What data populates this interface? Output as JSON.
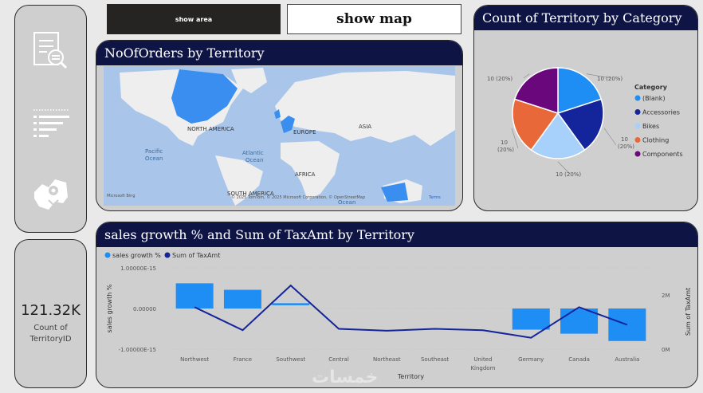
{
  "buttons": {
    "show_area": "show area",
    "show_map": "show map"
  },
  "navbar": {
    "icons": [
      "report-search-icon",
      "bar-list-icon",
      "map-pin-icon"
    ]
  },
  "kpi": {
    "value": "121.32K",
    "label_line1": "Count of",
    "label_line2": "TerritoryID"
  },
  "map": {
    "title": "NoOfOrders by Territory",
    "labels": {
      "north_america": "NORTH AMERICA",
      "europe": "EUROPE",
      "asia": "ASIA",
      "africa": "AFRICA",
      "south_america": "SOUTH AMERICA",
      "pacific": "Pacific",
      "pacific2": "Ocean",
      "atlantic": "Atlantic",
      "atlantic2": "Ocean",
      "ocean_bottom": "Ocean"
    },
    "brand": "Microsoft Bing",
    "copyright": "© 2025 TomTom, © 2025 Microsoft Corporation, © OpenStreetMap",
    "terms": "Terms",
    "colors": {
      "water": "#a9c6ea",
      "land": "#eeeeee",
      "highlight": "#3a8ef0"
    }
  },
  "pie": {
    "title": "Count of Territory by Category",
    "legend_title": "Category",
    "chart_data": {
      "type": "pie",
      "title": "Count of Territory by Category",
      "slices": [
        {
          "name": "(Blank)",
          "value": 10,
          "label": "10 (20%)",
          "color": "#1e8ef5"
        },
        {
          "name": "Accessories",
          "value": 10,
          "label": "10 (20%)",
          "color": "#14249b"
        },
        {
          "name": "Bikes",
          "value": 10,
          "label": "10 (20%)",
          "color": "#a7d1fb"
        },
        {
          "name": "Clothing",
          "value": 10,
          "label": "10 (20%)",
          "color": "#e8683a"
        },
        {
          "name": "Components",
          "value": 10,
          "label": "10 (20%)",
          "color": "#6b077c"
        }
      ]
    }
  },
  "combo": {
    "title": "sales growth % and Sum of TaxAmt by Territory",
    "legend": [
      "sales growth %",
      "Sum of TaxAmt"
    ],
    "chart_data": {
      "type": "bar",
      "xlabel": "Territory",
      "ylabel": "sales growth %",
      "y2label": "Sum of TaxAmt",
      "categories": [
        "Northwest",
        "France",
        "Southwest",
        "Central",
        "Northeast",
        "Southeast",
        "United Kingdom",
        "Germany",
        "Canada",
        "Australia"
      ],
      "category_lines": [
        [
          "Northwest"
        ],
        [
          "France"
        ],
        [
          "Southwest"
        ],
        [
          "Central"
        ],
        [
          "Northeast"
        ],
        [
          "Southeast"
        ],
        [
          "United",
          "Kingdom"
        ],
        [
          "Germany"
        ],
        [
          "Canada"
        ],
        [
          "Australia"
        ]
      ],
      "yticks": [
        "1.00000E-15",
        "0.00000",
        "-1.00000E-15"
      ],
      "y2ticks": [
        "2M",
        "0M"
      ],
      "ylim": [
        -1e-15,
        1e-15
      ],
      "y2lim": [
        0,
        3000000
      ],
      "series": [
        {
          "name": "sales growth %",
          "type": "bar",
          "color": "#1e8ef5",
          "values": [
            6.2e-16,
            4.6e-16,
            1.3e-16,
            0,
            0,
            0,
            0,
            -5.2e-16,
            -6.2e-16,
            -8e-16
          ],
          "low": [
            0,
            0,
            8e-17,
            0,
            0,
            0,
            0,
            -5.2e-16,
            -6.2e-16,
            -8e-16
          ],
          "high": [
            6.2e-16,
            4.6e-16,
            1.3e-16,
            0,
            0,
            0,
            0,
            0,
            0,
            0
          ]
        },
        {
          "name": "Sum of TaxAmt",
          "type": "line",
          "color": "#14249b",
          "values": [
            1550000,
            700000,
            2350000,
            750000,
            680000,
            750000,
            700000,
            420000,
            1550000,
            900000
          ]
        }
      ]
    }
  },
  "watermark": "خمسات"
}
